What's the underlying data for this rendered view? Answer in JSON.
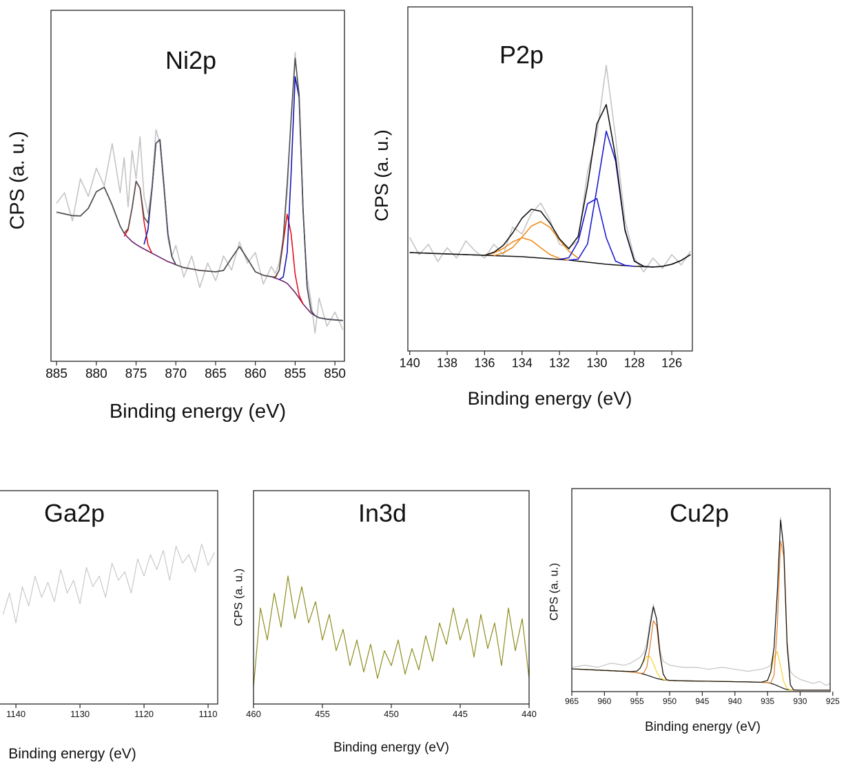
{
  "chart_data": [
    {
      "type": "line",
      "title": "Ni2p",
      "xlabel": "Binding energy (eV)",
      "ylabel": "CPS (a. u.)",
      "xlim": [
        885.7,
        848.8
      ],
      "xticks": [
        885,
        880,
        875,
        870,
        865,
        860,
        855,
        850
      ],
      "ylim": [
        0,
        100
      ],
      "x": [
        885,
        884,
        883,
        882,
        881,
        880,
        879,
        878,
        877,
        876.5,
        876,
        875.5,
        875,
        874.5,
        874,
        873.5,
        873,
        872.5,
        872,
        871.5,
        871,
        870.5,
        870,
        869,
        868,
        867,
        866,
        865,
        864,
        863,
        862,
        861,
        860,
        859,
        858,
        857.5,
        857,
        856.5,
        856,
        855.5,
        855,
        854.5,
        854,
        853.5,
        853,
        852.5,
        852,
        851,
        850,
        849
      ],
      "series": [
        {
          "color": "#c4c4c4",
          "values": [
            45,
            48,
            40,
            52,
            47,
            55,
            50,
            62,
            48,
            58,
            44,
            60,
            52,
            64,
            47,
            42,
            50,
            66,
            62,
            49,
            35,
            30,
            33,
            24,
            30,
            21,
            28,
            23,
            30,
            26,
            34,
            28,
            31,
            22,
            27,
            25,
            28,
            35,
            48,
            70,
            88,
            74,
            42,
            24,
            17,
            8,
            18,
            10,
            14,
            9
          ]
        },
        {
          "color": "#6b1f6b",
          "values": [
            42.5,
            42.0,
            41.5,
            41.4,
            43.6,
            48.3,
            49.6,
            44.5,
            38.5,
            36.5,
            35.2,
            34.1,
            33.3,
            32.6,
            32.0,
            31.4,
            30.8,
            30.2,
            29.6,
            29.0,
            28.4,
            28.0,
            27.5,
            26.7,
            26.3,
            25.9,
            25.7,
            25.5,
            25.9,
            29.4,
            32.7,
            29.2,
            25.5,
            24.5,
            24.1,
            23.7,
            23.3,
            22.8,
            22.2,
            20.9,
            19.6,
            18.0,
            16.3,
            15.0,
            13.7,
            13.0,
            12.4,
            12.0,
            11.8,
            11.6
          ]
        },
        {
          "color": "#e8101c",
          "values": [
            null,
            null,
            null,
            null,
            null,
            null,
            null,
            null,
            null,
            35.6,
            37.5,
            43.7,
            51.3,
            49.3,
            39.8,
            33.2,
            30.8,
            null,
            null,
            null,
            null,
            null,
            null,
            null,
            null,
            null,
            null,
            null,
            null,
            null,
            null,
            null,
            null,
            null,
            null,
            23.7,
            26.0,
            33.8,
            41.9,
            36.2,
            24.8,
            18.8,
            16.3,
            null,
            null,
            null,
            null,
            null,
            null,
            null
          ]
        },
        {
          "color": "#1414b4",
          "values": [
            null,
            null,
            null,
            null,
            null,
            null,
            null,
            null,
            null,
            null,
            null,
            null,
            null,
            null,
            33.3,
            37.6,
            49.0,
            62.1,
            63.2,
            50.2,
            36.4,
            29.8,
            27.5,
            null,
            null,
            null,
            null,
            null,
            null,
            null,
            null,
            null,
            null,
            null,
            null,
            null,
            23.3,
            24.0,
            31.0,
            53.9,
            81.1,
            75.2,
            43.0,
            21.2,
            14.4,
            13.0,
            12.4,
            12.0,
            11.8,
            11.6
          ]
        },
        {
          "color": "#505050",
          "values": [
            42.5,
            42.0,
            41.5,
            41.4,
            43.6,
            48.3,
            49.6,
            44.5,
            38.5,
            36.5,
            37.8,
            43.7,
            51.3,
            49.3,
            41.1,
            39.4,
            49.0,
            62.1,
            63.2,
            50.2,
            36.4,
            29.8,
            27.5,
            26.7,
            26.3,
            25.9,
            25.7,
            25.5,
            25.9,
            29.4,
            32.7,
            29.2,
            25.5,
            24.5,
            24.1,
            24.0,
            26.0,
            35.0,
            50.7,
            69.2,
            86.3,
            76.0,
            43.0,
            21.2,
            14.4,
            13.0,
            12.4,
            12.0,
            11.8,
            11.6
          ]
        }
      ]
    },
    {
      "type": "line",
      "title": "P2p",
      "xlabel": "Binding energy (eV)",
      "ylabel": "CPS (a. u.)",
      "xlim": [
        140.1,
        124.9
      ],
      "xticks": [
        140,
        138,
        136,
        134,
        132,
        130,
        128,
        126
      ],
      "ylim": [
        0,
        100
      ],
      "x": [
        140,
        139.5,
        139,
        138.5,
        138,
        137.5,
        137,
        136.5,
        136,
        135.5,
        135,
        134.5,
        134,
        133.5,
        133,
        132.5,
        132,
        131.5,
        131,
        130.5,
        130,
        129.5,
        129,
        128.5,
        128,
        127.5,
        127,
        126.5,
        126,
        125.5,
        125
      ],
      "series": [
        {
          "color": "#c4c4c4",
          "values": [
            33,
            28,
            31,
            26,
            30,
            27,
            32,
            29,
            27,
            31,
            28,
            36,
            34,
            40,
            43,
            38,
            31,
            30,
            32,
            52,
            63,
            83,
            62,
            38,
            27,
            23,
            27,
            24,
            28,
            25,
            29
          ]
        },
        {
          "color": "#111111",
          "values": [
            28.6,
            28.5,
            28.4,
            28.3,
            28.2,
            28.1,
            28.0,
            27.9,
            27.8,
            27.7,
            27.6,
            27.5,
            27.4,
            27.2,
            27.0,
            26.8,
            26.6,
            26.4,
            26.1,
            25.8,
            25.5,
            25.2,
            25.0,
            24.8,
            24.6,
            24.5,
            24.4,
            24.6,
            25.2,
            26.3,
            28.0
          ]
        },
        {
          "color": "#f08a1c",
          "values": [
            null,
            null,
            null,
            null,
            null,
            null,
            null,
            null,
            null,
            27.7,
            28.5,
            30.1,
            33.1,
            36.3,
            37.6,
            35.9,
            32.3,
            29.0,
            27.0,
            null,
            null,
            null,
            null,
            null,
            null,
            null,
            null,
            null,
            null,
            null,
            null
          ]
        },
        {
          "color": "#f08a1c",
          "values": [
            null,
            null,
            null,
            null,
            null,
            null,
            null,
            null,
            27.8,
            28.5,
            29.8,
            31.7,
            32.9,
            32.1,
            30.0,
            28.0,
            26.9,
            26.4,
            null,
            null,
            null,
            null,
            null,
            null,
            null,
            null,
            null,
            null,
            null,
            null,
            null
          ]
        },
        {
          "color": "#1a1ad0",
          "values": [
            null,
            null,
            null,
            null,
            null,
            null,
            null,
            null,
            null,
            null,
            null,
            null,
            null,
            null,
            null,
            null,
            26.6,
            27.1,
            31.8,
            42.8,
            44.3,
            32.9,
            26.1,
            24.9,
            24.6,
            null,
            null,
            null,
            null,
            null,
            null
          ]
        },
        {
          "color": "#1a1ad0",
          "values": [
            null,
            null,
            null,
            null,
            null,
            null,
            null,
            null,
            null,
            null,
            null,
            null,
            null,
            null,
            null,
            null,
            null,
            26.4,
            26.7,
            31.1,
            47.2,
            63.9,
            55.2,
            35.1,
            26.1,
            24.6,
            24.4,
            null,
            null,
            null,
            null
          ]
        },
        {
          "color": "#111111",
          "values": [
            28.6,
            28.5,
            28.4,
            28.3,
            28.2,
            28.1,
            28.0,
            27.9,
            27.8,
            28.7,
            30.7,
            34.3,
            38.6,
            41.2,
            40.6,
            37.1,
            32.6,
            29.7,
            33.3,
            48.1,
            66.0,
            71.6,
            56.3,
            35.2,
            26.1,
            24.6,
            24.4,
            24.6,
            25.2,
            26.3,
            28.0
          ]
        }
      ]
    },
    {
      "type": "line",
      "title": "Ga2p",
      "xlabel": "Binding energy (eV)",
      "xlim": [
        1142.7,
        1108.5
      ],
      "xticks": [
        1140,
        1130,
        1120,
        1110
      ],
      "ylim": [
        0,
        100
      ],
      "x": [
        1142,
        1141,
        1140,
        1139,
        1138,
        1137,
        1136,
        1135,
        1134,
        1133,
        1132,
        1131,
        1130,
        1129,
        1128,
        1127,
        1126,
        1125,
        1124,
        1123,
        1122,
        1121,
        1120,
        1119,
        1118,
        1117,
        1116,
        1115,
        1114,
        1113,
        1112,
        1111,
        1110,
        1109
      ],
      "series": [
        {
          "color": "#c4c4c4",
          "values": [
            42,
            52,
            38,
            55,
            46,
            60,
            50,
            57,
            48,
            63,
            52,
            58,
            47,
            64,
            55,
            60,
            50,
            66,
            58,
            62,
            52,
            68,
            60,
            70,
            63,
            72,
            58,
            74,
            66,
            70,
            62,
            75,
            65,
            71
          ]
        }
      ]
    },
    {
      "type": "line",
      "title": "In3d",
      "xlabel": "Binding energy (eV)",
      "ylabel": "CPS (a. u.)",
      "xlim": [
        460,
        440
      ],
      "xticks": [
        460,
        455,
        450,
        445,
        440
      ],
      "ylim": [
        0,
        100
      ],
      "x": [
        460,
        459.5,
        459,
        458.5,
        458,
        457.5,
        457,
        456.5,
        456,
        455.5,
        455,
        454.5,
        454,
        453.5,
        453,
        452.5,
        452,
        451.5,
        451,
        450.5,
        450,
        449.5,
        449,
        448.5,
        448,
        447.5,
        447,
        446.5,
        446,
        445.5,
        445,
        444.5,
        444,
        443.5,
        443,
        442.5,
        442,
        441.5,
        441,
        440.5,
        440
      ],
      "series": [
        {
          "color": "#8c8c1e",
          "values": [
            8,
            45,
            30,
            52,
            36,
            60,
            40,
            55,
            38,
            48,
            30,
            42,
            25,
            35,
            18,
            30,
            15,
            28,
            12,
            25,
            18,
            30,
            14,
            26,
            16,
            32,
            20,
            38,
            28,
            45,
            30,
            40,
            22,
            42,
            26,
            38,
            18,
            45,
            25,
            40,
            12
          ]
        }
      ]
    },
    {
      "type": "line",
      "title": "Cu2p",
      "xlabel": "Binding energy (eV)",
      "ylabel": "CPS (a. u.)",
      "xlim": [
        965,
        925.4
      ],
      "xticks": [
        965,
        960,
        955,
        950,
        945,
        940,
        935,
        930,
        925
      ],
      "ylim": [
        0,
        100
      ],
      "x": [
        965,
        963,
        961,
        959,
        957,
        956,
        955,
        954.5,
        954,
        953.5,
        953,
        952.5,
        952,
        951.5,
        951,
        950.5,
        950,
        948,
        946,
        944,
        942,
        940,
        938,
        936,
        935,
        934.5,
        934,
        933.5,
        933,
        932.5,
        932,
        931.5,
        931,
        930,
        929,
        928,
        927,
        926,
        925.5
      ],
      "series": [
        {
          "color": "#c4c4c4",
          "values": [
            12,
            13,
            12,
            14,
            13,
            14,
            16,
            17,
            19,
            24,
            35,
            43,
            36,
            21,
            15,
            14,
            13,
            12,
            12,
            11,
            12,
            11,
            10,
            11,
            12,
            13,
            22,
            50,
            86,
            71,
            25,
            10,
            8,
            6,
            5,
            4,
            5,
            3,
            4
          ]
        },
        {
          "color": "#111111",
          "values": [
            11.2,
            10.9,
            10.6,
            10.3,
            10.0,
            9.7,
            9.3,
            9.0,
            8.6,
            8.1,
            7.6,
            7.0,
            6.5,
            6.1,
            5.8,
            5.6,
            5.5,
            5.3,
            5.2,
            5.1,
            5.0,
            4.9,
            4.8,
            4.6,
            4.4,
            4.1,
            3.6,
            2.9,
            2.2,
            1.5,
            1.0,
            0.8,
            0.7,
            0.7,
            0.7,
            0.7,
            0.7,
            0.7,
            0.7
          ]
        },
        {
          "color": "#f5d22c",
          "values": [
            11.2,
            10.9,
            10.6,
            10.3,
            10.0,
            9.7,
            10.1,
            11.7,
            14.7,
            17.4,
            17.3,
            13.8,
            9.7,
            7.1,
            6.0,
            5.6,
            5.5,
            5.3,
            5.2,
            5.1,
            5.0,
            4.9,
            4.8,
            4.6,
            5.5,
            9.6,
            17.2,
            19.7,
            12.5,
            4.7,
            1.5,
            0.8,
            0.7,
            0.7,
            0.7,
            0.7,
            0.7,
            0.7,
            0.7
          ]
        },
        {
          "color": "#e07a26",
          "values": [
            11.2,
            10.9,
            10.6,
            10.3,
            10.0,
            9.7,
            9.3,
            9.0,
            9.1,
            12.1,
            22.6,
            34.9,
            32.5,
            18.2,
            8.6,
            5.9,
            5.5,
            5.3,
            5.2,
            5.1,
            5.0,
            4.9,
            4.8,
            4.6,
            4.4,
            4.3,
            8.0,
            32.2,
            74.2,
            66.6,
            22.7,
            3.4,
            0.8,
            0.7,
            0.7,
            0.7,
            0.7,
            0.7,
            0.7
          ]
        },
        {
          "color": "#111111",
          "values": [
            11.2,
            10.9,
            10.6,
            10.3,
            10.0,
            9.9,
            10.1,
            11.7,
            15.2,
            21.4,
            32.3,
            41.7,
            35.7,
            19.2,
            8.8,
            5.9,
            5.5,
            5.3,
            5.2,
            5.1,
            5.0,
            4.9,
            4.8,
            4.6,
            5.5,
            9.8,
            21.6,
            49.0,
            84.5,
            69.8,
            23.2,
            3.4,
            0.8,
            0.7,
            0.7,
            0.7,
            0.7,
            0.7,
            0.7
          ]
        }
      ]
    }
  ]
}
